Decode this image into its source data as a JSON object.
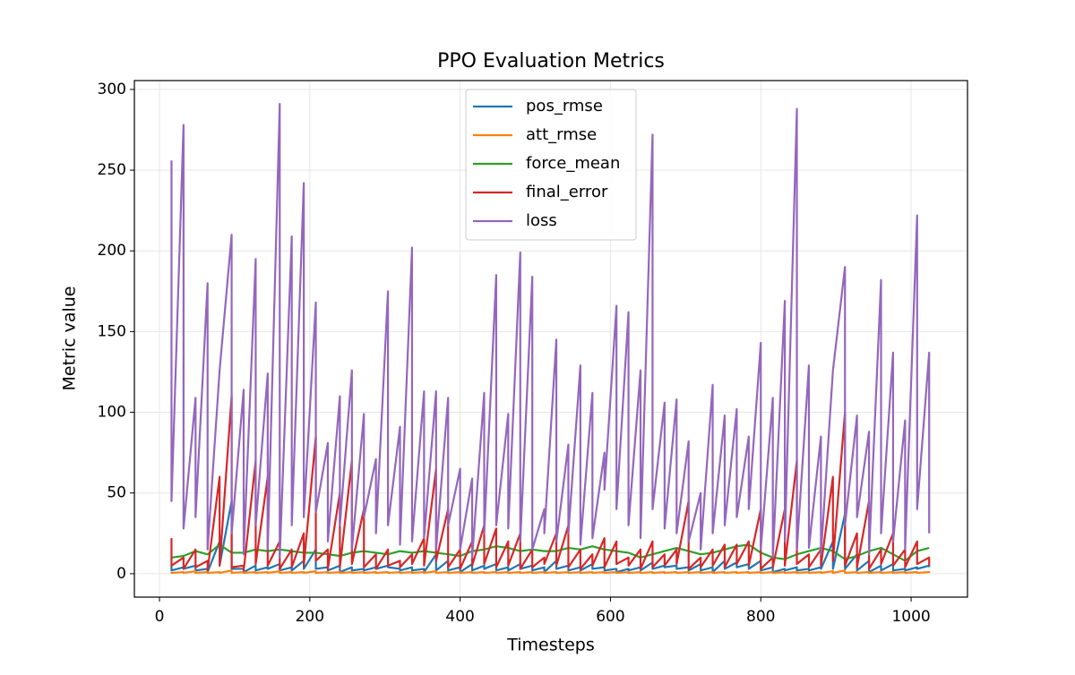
{
  "chart_data": {
    "type": "line",
    "title": "PPO Evaluation Metrics",
    "x_label": "Timesteps",
    "y_label": "Metric value",
    "x": [
      16,
      16,
      32,
      32,
      48,
      48,
      64,
      64,
      80,
      80,
      96,
      96,
      112,
      112,
      128,
      128,
      144,
      144,
      160,
      160,
      176,
      176,
      192,
      192,
      208,
      208,
      224,
      224,
      240,
      240,
      256,
      256,
      272,
      272,
      288,
      288,
      304,
      304,
      320,
      320,
      336,
      336,
      352,
      352,
      368,
      368,
      384,
      384,
      400,
      400,
      416,
      416,
      432,
      432,
      448,
      448,
      464,
      464,
      480,
      480,
      496,
      496,
      512,
      512,
      528,
      528,
      544,
      544,
      560,
      560,
      576,
      576,
      592,
      592,
      608,
      608,
      624,
      624,
      640,
      640,
      656,
      656,
      672,
      672,
      688,
      688,
      704,
      704,
      720,
      720,
      736,
      736,
      752,
      752,
      768,
      768,
      784,
      784,
      800,
      800,
      816,
      816,
      832,
      832,
      848,
      848,
      864,
      864,
      880,
      880,
      896,
      896,
      912,
      912,
      928,
      928,
      944,
      944,
      960,
      960,
      976,
      976,
      992,
      992,
      1008,
      1008,
      1024,
      1024
    ],
    "series": [
      {
        "name": "pos_rmse",
        "color": "#1f77b4",
        "values": [
          5,
          2,
          4,
          3,
          5,
          2,
          3,
          1,
          20,
          5,
          45,
          3,
          3,
          1,
          5,
          2,
          4,
          3,
          6,
          2,
          4,
          2,
          8,
          3,
          15,
          3,
          4,
          2,
          5,
          1,
          4,
          2,
          3,
          2,
          4,
          3,
          5,
          4,
          3,
          2,
          4,
          2,
          3,
          1,
          12,
          2,
          8,
          2,
          4,
          1,
          6,
          2,
          5,
          3,
          6,
          2,
          4,
          2,
          6,
          3,
          5,
          2,
          4,
          1,
          8,
          3,
          5,
          2,
          4,
          2,
          6,
          3,
          4,
          2,
          3,
          1,
          3,
          2,
          4,
          2,
          7,
          3,
          5,
          4,
          5,
          3,
          4,
          2,
          6,
          2,
          4,
          1,
          8,
          3,
          7,
          4,
          6,
          3,
          8,
          2,
          4,
          1,
          3,
          2,
          4,
          2,
          3,
          2,
          4,
          3,
          20,
          3,
          37,
          3,
          12,
          2,
          8,
          1,
          5,
          2,
          6,
          2,
          3,
          2,
          4,
          3,
          5,
          4
        ]
      },
      {
        "name": "att_rmse",
        "color": "#ff7f0e",
        "values": [
          1,
          0.5,
          1,
          0.5,
          1.5,
          0.5,
          1,
          0.5,
          1,
          0.5,
          2,
          0.5,
          1,
          0.5,
          1,
          0.5,
          1,
          0.5,
          1.5,
          0.5,
          1,
          0.5,
          1,
          0.5,
          1.5,
          0.5,
          1,
          0.5,
          1,
          0.5,
          1,
          0.5,
          1,
          0.5,
          1,
          0.5,
          1,
          0.5,
          1,
          0.5,
          1,
          0.5,
          1,
          0.5,
          1.5,
          0.5,
          1,
          0.5,
          1,
          0.5,
          1,
          0.5,
          1,
          0.5,
          1,
          0.5,
          1,
          0.5,
          1,
          0.5,
          1,
          0.5,
          1,
          0.5,
          1,
          0.5,
          1,
          0.5,
          1,
          0.5,
          1,
          0.5,
          1,
          0.5,
          1,
          0.5,
          1,
          0.5,
          1,
          0.5,
          1,
          0.5,
          1,
          0.5,
          1,
          0.5,
          1,
          0.5,
          1,
          0.5,
          1,
          0.5,
          1,
          0.5,
          1,
          0.5,
          1,
          0.5,
          1,
          0.5,
          1,
          0.5,
          1,
          0.5,
          1,
          0.5,
          1,
          0.5,
          1,
          0.5,
          1.5,
          0.5,
          2,
          0.5,
          1,
          0.5,
          1,
          0.5,
          1,
          0.5,
          1,
          0.5,
          1,
          0.5,
          1,
          0.5,
          1,
          0.5
        ]
      },
      {
        "name": "force_mean",
        "color": "#2ca02c",
        "values": [
          10,
          10,
          11,
          11,
          14,
          14,
          12,
          12,
          18,
          18,
          13,
          13,
          13,
          13,
          15,
          15,
          14,
          14,
          15,
          15,
          14,
          14,
          13,
          13,
          13,
          13,
          12,
          12,
          11,
          11,
          13,
          13,
          14,
          14,
          13,
          13,
          12,
          12,
          14,
          14,
          13,
          13,
          14,
          14,
          13,
          13,
          12,
          12,
          11,
          11,
          14,
          14,
          15,
          15,
          17,
          17,
          16,
          16,
          14,
          14,
          15,
          15,
          14,
          14,
          14,
          14,
          16,
          16,
          15,
          15,
          17,
          17,
          15,
          15,
          14,
          14,
          13,
          13,
          10,
          10,
          12,
          12,
          14,
          14,
          16,
          16,
          14,
          14,
          12,
          12,
          13,
          13,
          15,
          15,
          17,
          17,
          18,
          18,
          13,
          13,
          10,
          10,
          9,
          9,
          12,
          12,
          14,
          14,
          16,
          16,
          14,
          14,
          9,
          9,
          11,
          11,
          14,
          14,
          16,
          16,
          12,
          12,
          8,
          8,
          14,
          14,
          16,
          16
        ]
      },
      {
        "name": "final_error",
        "color": "#d62728",
        "values": [
          22,
          5,
          10,
          3,
          15,
          4,
          8,
          2,
          60,
          5,
          110,
          4,
          5,
          2,
          70,
          6,
          60,
          5,
          20,
          3,
          15,
          4,
          25,
          5,
          85,
          8,
          15,
          3,
          50,
          4,
          70,
          6,
          40,
          4,
          12,
          3,
          15,
          5,
          8,
          4,
          12,
          6,
          22,
          5,
          65,
          8,
          40,
          4,
          15,
          3,
          20,
          5,
          30,
          6,
          28,
          4,
          20,
          5,
          25,
          3,
          15,
          4,
          10,
          6,
          25,
          5,
          30,
          4,
          15,
          3,
          12,
          5,
          22,
          4,
          20,
          6,
          10,
          5,
          15,
          3,
          20,
          4,
          12,
          5,
          15,
          6,
          45,
          3,
          10,
          4,
          15,
          5,
          18,
          4,
          18,
          6,
          20,
          5,
          40,
          3,
          10,
          4,
          40,
          5,
          70,
          6,
          12,
          4,
          15,
          5,
          60,
          8,
          100,
          5,
          25,
          4,
          45,
          3,
          15,
          6,
          25,
          5,
          15,
          4,
          20,
          6,
          10,
          5
        ]
      },
      {
        "name": "loss",
        "color": "#9467bd",
        "values": [
          256,
          45,
          278,
          28,
          109,
          35,
          180,
          15,
          126,
          126,
          210,
          25,
          114,
          12,
          195,
          30,
          124,
          15,
          291,
          10,
          209,
          30,
          242,
          35,
          168,
          38,
          81,
          20,
          110,
          30,
          126,
          15,
          99,
          35,
          71,
          25,
          175,
          30,
          91,
          18,
          202,
          20,
          113,
          22,
          113,
          15,
          109,
          30,
          65,
          15,
          59,
          10,
          112,
          25,
          185,
          30,
          99,
          28,
          199,
          20,
          184,
          15,
          40,
          25,
          145,
          20,
          80,
          25,
          129,
          18,
          112,
          22,
          75,
          52,
          166,
          40,
          162,
          30,
          126,
          22,
          272,
          40,
          106,
          28,
          108,
          25,
          82,
          20,
          50,
          15,
          117,
          25,
          98,
          30,
          102,
          35,
          85,
          40,
          143,
          15,
          109,
          10,
          169,
          20,
          288,
          15,
          129,
          16,
          85,
          12,
          126,
          126,
          190,
          30,
          98,
          35,
          88,
          12,
          182,
          25,
          137,
          20,
          95,
          15,
          222,
          40,
          137,
          25
        ]
      }
    ],
    "xlim": [
      -33.4,
      1075
    ],
    "ylim": [
      -14.5,
      305.5
    ],
    "xticks": [
      0,
      200,
      400,
      600,
      800,
      1000
    ],
    "yticks": [
      0,
      50,
      100,
      150,
      200,
      250,
      300
    ],
    "grid": true,
    "legend": "upper center"
  }
}
